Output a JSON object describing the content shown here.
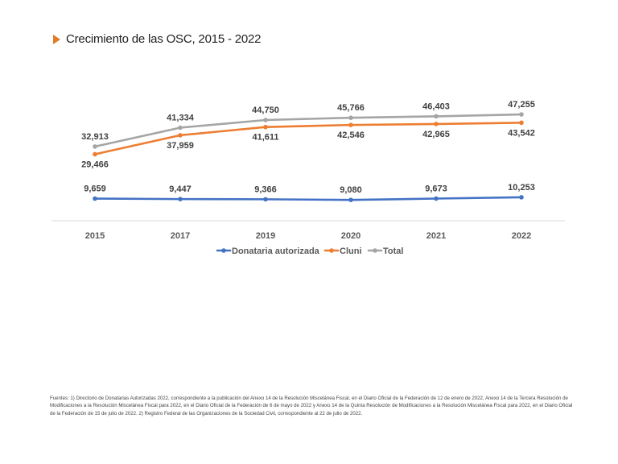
{
  "title": "Crecimiento de las OSC, 2015 - 2022",
  "colors": {
    "title_marker": "#e07b27",
    "donataria": "#4472c4",
    "cluni": "#ed7d31",
    "total": "#a5a5a5"
  },
  "chart_data": {
    "type": "line",
    "title": "Crecimiento de las OSC, 2015 - 2022",
    "categories": [
      "2015",
      "2017",
      "2019",
      "2020",
      "2021",
      "2022"
    ],
    "series": [
      {
        "name": "Donataria autorizada",
        "values": [
          9659,
          9447,
          9366,
          9080,
          9673,
          10253
        ],
        "labels": [
          "9,659",
          "9,447",
          "9,366",
          "9,080",
          "9,673",
          "10,253"
        ]
      },
      {
        "name": "Cluni",
        "values": [
          29466,
          37959,
          41611,
          42546,
          42965,
          43542
        ],
        "labels": [
          "29,466",
          "37,959",
          "41,611",
          "42,546",
          "42,965",
          "43,542"
        ]
      },
      {
        "name": "Total",
        "values": [
          32913,
          41334,
          44750,
          45766,
          46403,
          47255
        ],
        "labels": [
          "32,913",
          "41,334",
          "44,750",
          "45,766",
          "46,403",
          "47,255"
        ]
      }
    ],
    "legend_position": "bottom",
    "grid": false
  },
  "footnote": "Fuentes: 1) Directorio de Donatarias Autorizadas 2022, correspondiente a la publicación del Anexo 14 de la Resolución Miscelánea Fiscal, en el Diario Oficial de la Federación de 12 de enero de 2022, Anexo 14 de la Tercera Resolución de Modificaciones a la Resolución Miscelánea Fiscal para 2022, en el Diario Oficial de la Federación de 6 de mayo de 2022 y Anexo 14 de la Quinta Resolución de Modificaciones a la Resolución Miscelánea Fiscal para 2022, en el Diario Oficial de la Federación de 15 de julio de 2022. 2) Registro Federal de las Organizaciones de la Sociedad Civil, correspondiente al 22 de julio de 2022."
}
